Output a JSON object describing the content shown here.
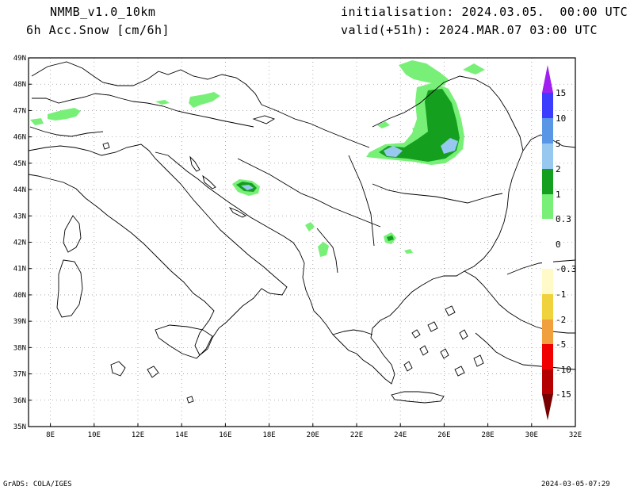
{
  "header": {
    "model": "NMMB_v1.0_10km",
    "field": "6h Acc.Snow [cm/6h]",
    "init": "initialisation: 2024.03.05.  00:00 UTC",
    "valid": "valid(+51h): 2024.MAR.07 03:00 UTC"
  },
  "axes": {
    "lat_labels": [
      "49N",
      "48N",
      "47N",
      "46N",
      "45N",
      "44N",
      "43N",
      "42N",
      "41N",
      "40N",
      "39N",
      "38N",
      "37N",
      "36N",
      "35N"
    ],
    "lon_labels": [
      "8E",
      "10E",
      "12E",
      "14E",
      "16E",
      "18E",
      "20E",
      "22E",
      "24E",
      "26E",
      "28E",
      "30E",
      "32E"
    ],
    "lat_range": [
      35,
      49
    ],
    "lon_range": [
      7,
      32
    ]
  },
  "colorbar": {
    "labels": [
      "15",
      "10",
      "5",
      "2",
      "1",
      "0.3",
      "0",
      "-0.3",
      "-1",
      "-2",
      "-5",
      "-10",
      "-15"
    ],
    "colors": {
      "purple": "#a020f0",
      "blue": "#3c3cff",
      "mid_blue": "#5a96e6",
      "light_blue": "#96c8f0",
      "dark_green": "#14a01e",
      "light_green": "#78f078",
      "pale_yellow": "#fffac8",
      "yellow": "#f0d23c",
      "orange": "#f0a03c",
      "dark_orange": "#f07828",
      "red": "#f00000",
      "dark_red": "#b40000",
      "maroon": "#780000"
    }
  },
  "footer": {
    "left": "GrADS: COLA/IGES",
    "right": "2024-03-05-07:29"
  }
}
